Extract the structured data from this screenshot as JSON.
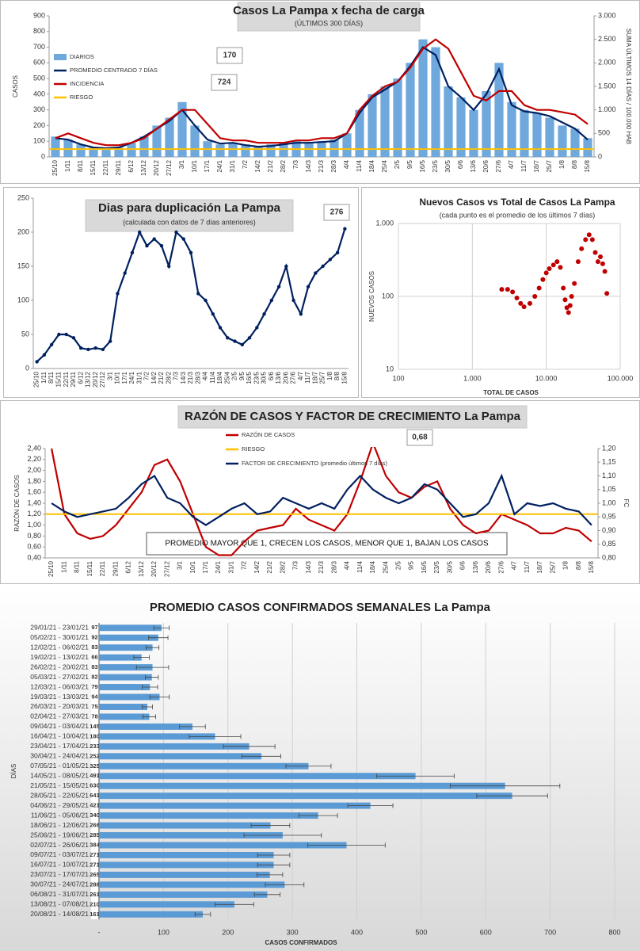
{
  "chart_data": [
    {
      "type": "bar",
      "title": "Casos La Pampa x fecha de carga",
      "subtitle": "(ÚLTIMOS 300 DÍAS)",
      "y_label": "CASOS",
      "y2_label": "SUMA ÚLTIMOS 14 DÍAS / 100.000 HAB",
      "categories": [
        "25/10",
        "1/11",
        "8/11",
        "15/11",
        "22/11",
        "29/11",
        "6/12",
        "13/12",
        "20/12",
        "27/12",
        "3/1",
        "10/1",
        "17/1",
        "24/1",
        "31/1",
        "7/2",
        "14/2",
        "21/2",
        "28/2",
        "7/3",
        "14/3",
        "21/3",
        "28/3",
        "4/4",
        "11/4",
        "18/4",
        "25/4",
        "2/5",
        "9/5",
        "16/5",
        "23/5",
        "30/5",
        "6/6",
        "13/6",
        "20/6",
        "27/6",
        "4/7",
        "11/7",
        "18/7",
        "25/7",
        "1/8",
        "8/8",
        "15/8"
      ],
      "series": [
        {
          "name": "DIARIOS",
          "type": "bar",
          "color": "#6fa8dc",
          "values": [
            130,
            110,
            80,
            60,
            50,
            60,
            90,
            130,
            200,
            250,
            350,
            200,
            100,
            80,
            90,
            80,
            70,
            80,
            90,
            100,
            90,
            100,
            110,
            150,
            300,
            400,
            450,
            500,
            600,
            750,
            700,
            450,
            380,
            300,
            420,
            600,
            350,
            300,
            280,
            250,
            200,
            180,
            120
          ]
        },
        {
          "name": "PROMEDIO CENTRADO 7 DÍAS",
          "type": "line",
          "color": "#002060",
          "values": [
            120,
            110,
            80,
            60,
            55,
            60,
            90,
            130,
            180,
            230,
            300,
            200,
            110,
            85,
            90,
            75,
            65,
            70,
            80,
            90,
            90,
            95,
            100,
            150,
            280,
            380,
            430,
            480,
            580,
            700,
            650,
            450,
            380,
            300,
            400,
            560,
            330,
            290,
            280,
            260,
            220,
            180,
            110
          ]
        },
        {
          "name": "INCIDENCIA",
          "type": "line",
          "color": "#c00000",
          "axis": "y2",
          "values": [
            400,
            500,
            400,
            300,
            250,
            250,
            300,
            400,
            600,
            800,
            1000,
            1000,
            700,
            400,
            350,
            350,
            300,
            300,
            300,
            350,
            350,
            400,
            400,
            500,
            1000,
            1300,
            1500,
            1600,
            1900,
            2300,
            2500,
            2300,
            1800,
            1300,
            1200,
            1400,
            1400,
            1100,
            1000,
            1000,
            950,
            900,
            700
          ]
        },
        {
          "name": "RIESGO",
          "type": "line",
          "color": "#ffc000",
          "value": 50
        }
      ],
      "ylim": [
        0,
        900
      ],
      "yticks": [
        0,
        100,
        200,
        300,
        400,
        500,
        600,
        700,
        800,
        900
      ],
      "y2lim": [
        0,
        3000
      ],
      "y2ticks": [
        0,
        500,
        {
          "value": 1000,
          "label": "1.000"
        },
        {
          "value": 1500,
          "label": "1.500"
        },
        {
          "value": 2000,
          "label": "2.000"
        },
        {
          "value": 2500,
          "label": "2.500"
        },
        {
          "value": 3000,
          "label": "3.000"
        }
      ],
      "annotations": [
        "170",
        "724"
      ]
    },
    {
      "type": "line",
      "title": "Dias para duplicación La Pampa",
      "subtitle": "(calculada con datos de 7 días anteriores)",
      "markers": true,
      "categories": [
        "25/10",
        "1/11",
        "8/11",
        "15/11",
        "22/11",
        "29/11",
        "6/12",
        "13/12",
        "20/12",
        "27/12",
        "3/1",
        "10/1",
        "17/1",
        "24/1",
        "31/1",
        "7/2",
        "14/2",
        "21/2",
        "28/2",
        "7/3",
        "14/3",
        "21/3",
        "28/3",
        "4/4",
        "11/4",
        "18/4",
        "25/4",
        "2/5",
        "9/5",
        "16/5",
        "23/5",
        "30/5",
        "6/6",
        "13/6",
        "20/6",
        "27/6",
        "4/7",
        "11/7",
        "18/7",
        "25/7",
        "1/8",
        "8/8",
        "15/8"
      ],
      "series": [
        {
          "type": "line",
          "color": "#002060",
          "values": [
            10,
            20,
            35,
            50,
            50,
            45,
            30,
            28,
            30,
            28,
            40,
            110,
            140,
            170,
            200,
            180,
            190,
            180,
            150,
            200,
            190,
            170,
            110,
            100,
            80,
            60,
            45,
            40,
            35,
            45,
            60,
            80,
            100,
            120,
            150,
            100,
            80,
            120,
            140,
            150,
            160,
            170,
            205
          ]
        }
      ],
      "ylim": [
        0,
        250
      ],
      "yticks": [
        0,
        50,
        100,
        150,
        200,
        250
      ],
      "annotations": [
        "276"
      ]
    },
    {
      "type": "scatter",
      "title": "Nuevos Casos vs Total de Casos La Pampa",
      "subtitle": "(cada punto es el promedio de los últimos 7 días)",
      "x_label": "TOTAL DE CASOS",
      "y_label": "NUEVOS CASOS",
      "xscale": "log",
      "yscale": "log",
      "grid": true,
      "color": "#c00000",
      "x": [
        2500,
        3000,
        3500,
        4000,
        4500,
        5000,
        6000,
        7000,
        8000,
        9000,
        10000,
        11000,
        12500,
        14000,
        15500,
        17000,
        18000,
        19000,
        20000,
        21000,
        22000,
        24000,
        27000,
        30000,
        34000,
        38000,
        42000,
        46000,
        50000,
        54000,
        58000,
        62000,
        66000
      ],
      "values": [
        125,
        125,
        115,
        95,
        80,
        72,
        80,
        100,
        130,
        170,
        210,
        240,
        270,
        300,
        250,
        130,
        90,
        70,
        60,
        75,
        100,
        150,
        300,
        450,
        600,
        700,
        600,
        400,
        300,
        350,
        280,
        220,
        110
      ],
      "xlim": [
        100,
        100000
      ],
      "xticks": [
        100,
        {
          "value": 1000,
          "label": "1.000"
        },
        {
          "value": 10000,
          "label": "10.000"
        },
        {
          "value": 100000,
          "label": "100.000"
        }
      ],
      "ylim": [
        10,
        1000
      ],
      "yticks": [
        10,
        100,
        {
          "value": 1000,
          "label": "1.000"
        }
      ]
    },
    {
      "type": "line",
      "title": "RAZÓN DE CASOS Y FACTOR DE CRECIMIENTO La Pampa",
      "y_label": "RAZÓN DE CASOS",
      "y2_label": "FC",
      "categories": [
        "25/10",
        "1/11",
        "8/11",
        "15/11",
        "22/11",
        "29/11",
        "6/12",
        "13/12",
        "20/12",
        "27/12",
        "3/1",
        "10/1",
        "17/1",
        "24/1",
        "31/1",
        "7/2",
        "14/2",
        "21/2",
        "28/2",
        "7/3",
        "14/3",
        "21/3",
        "28/3",
        "4/4",
        "11/4",
        "18/4",
        "25/4",
        "2/5",
        "9/5",
        "16/5",
        "23/5",
        "30/5",
        "6/6",
        "13/6",
        "20/6",
        "27/6",
        "4/7",
        "11/7",
        "18/7",
        "25/7",
        "1/8",
        "8/8",
        "15/8"
      ],
      "series": [
        {
          "name": "RAZÓN DE CASOS",
          "type": "line",
          "color": "#c00000",
          "values": [
            2.4,
            1.2,
            0.85,
            0.75,
            0.8,
            1.0,
            1.3,
            1.6,
            2.1,
            2.2,
            1.8,
            1.2,
            0.6,
            0.45,
            0.45,
            0.7,
            0.9,
            0.95,
            1.0,
            1.3,
            1.1,
            1.0,
            0.9,
            1.2,
            1.8,
            2.5,
            1.9,
            1.6,
            1.5,
            1.7,
            1.8,
            1.3,
            1.0,
            0.85,
            0.9,
            1.2,
            1.1,
            1.0,
            0.85,
            0.85,
            0.95,
            0.9,
            0.7
          ]
        },
        {
          "name": "RIESGO",
          "type": "line",
          "color": "#ffc000",
          "value": 1.2
        },
        {
          "name": "FACTOR DE CRECIMIENTO (promedio últimos 7 días)",
          "type": "line",
          "color": "#002060",
          "axis": "y2",
          "values": [
            1.0,
            0.97,
            0.95,
            0.96,
            0.97,
            0.98,
            1.02,
            1.07,
            1.1,
            1.02,
            1.0,
            0.95,
            0.92,
            0.95,
            0.98,
            1.0,
            0.96,
            0.97,
            1.02,
            1.0,
            0.98,
            1.0,
            0.98,
            1.05,
            1.1,
            1.05,
            1.02,
            1.0,
            1.02,
            1.07,
            1.05,
            1.0,
            0.95,
            0.96,
            1.0,
            1.1,
            0.96,
            1.0,
            0.99,
            1.0,
            0.98,
            0.97,
            0.92
          ]
        }
      ],
      "ylim": [
        0.4,
        2.4
      ],
      "yticks": [
        {
          "value": 0.4,
          "label": "0,40"
        },
        {
          "value": 0.6,
          "label": "0,60"
        },
        {
          "value": 0.8,
          "label": "0,80"
        },
        {
          "value": 1.0,
          "label": "1,00"
        },
        {
          "value": 1.2,
          "label": "1,20"
        },
        {
          "value": 1.4,
          "label": "1,40"
        },
        {
          "value": 1.6,
          "label": "1,60"
        },
        {
          "value": 1.8,
          "label": "1,80"
        },
        {
          "value": 2.0,
          "label": "2,00"
        },
        {
          "value": 2.2,
          "label": "2,20"
        },
        {
          "value": 2.4,
          "label": "2,40"
        }
      ],
      "y2lim": [
        0.8,
        1.2
      ],
      "y2ticks": [
        {
          "value": 0.8,
          "label": "0,80"
        },
        {
          "value": 0.85,
          "label": "0,85"
        },
        {
          "value": 0.9,
          "label": "0,90"
        },
        {
          "value": 0.95,
          "label": "0,95"
        },
        {
          "value": 1.0,
          "label": "1,00"
        },
        {
          "value": 1.05,
          "label": "1,05"
        },
        {
          "value": 1.1,
          "label": "1,10"
        },
        {
          "value": 1.15,
          "label": "1,15"
        },
        {
          "value": 1.2,
          "label": "1,20"
        }
      ],
      "annotations": [
        "0,68"
      ],
      "note": "PROMEDIO MAYOR QUE 1, CRECEN LOS CASOS, MENOR QUE 1, BAJAN LOS CASOS"
    },
    {
      "type": "bar",
      "orientation": "horizontal",
      "title": "PROMEDIO CASOS CONFIRMADOS SEMANALES La Pampa",
      "x_label": "CASOS CONFIRMADOS",
      "y_label": "DÍAS",
      "color": "#5b9bd5",
      "grid": true,
      "categories": [
        "29/01/21 - 23/01/21",
        "05/02/21 - 30/01/21",
        "12/02/21 - 06/02/21",
        "19/02/21 - 13/02/21",
        "26/02/21 - 20/02/21",
        "05/03/21 - 27/02/21",
        "12/03/21 - 06/03/21",
        "19/03/21 - 13/03/21",
        "26/03/21 - 20/03/21",
        "02/04/21 - 27/03/21",
        "09/04/21 - 03/04/21",
        "16/04/21 - 10/04/21",
        "23/04/21 - 17/04/21",
        "30/04/21 - 24/04/21",
        "07/05/21 - 01/05/21",
        "14/05/21 - 08/05/21",
        "21/05/21 - 15/05/21",
        "28/05/21 - 22/05/21",
        "04/06/21 - 29/05/21",
        "11/06/21 - 05/06/21",
        "18/06/21 - 12/06/21",
        "25/06/21 - 19/06/21",
        "02/07/21 - 26/06/21",
        "09/07/21 - 03/07/21",
        "16/07/21 - 10/07/21",
        "23/07/21 - 17/07/21",
        "30/07/21 - 24/07/21",
        "06/08/21 - 31/07/21",
        "13/08/21 - 07/08/21",
        "20/08/21 - 14/08/21"
      ],
      "values": [
        97,
        92,
        83,
        66,
        83,
        82,
        79,
        94,
        75,
        78,
        145,
        180,
        233,
        252,
        325,
        491,
        630,
        641,
        421,
        340,
        266,
        285,
        384,
        271,
        271,
        265,
        288,
        261,
        210,
        161
      ],
      "errors": [
        12,
        15,
        10,
        12,
        25,
        10,
        12,
        15,
        8,
        10,
        20,
        40,
        40,
        30,
        35,
        60,
        85,
        55,
        35,
        30,
        30,
        60,
        60,
        25,
        25,
        20,
        30,
        20,
        30,
        12
      ],
      "xlim": [
        0,
        800
      ],
      "xticks": [
        {
          "value": 0,
          "label": "-"
        },
        100,
        200,
        300,
        400,
        500,
        600,
        700,
        800
      ]
    }
  ]
}
